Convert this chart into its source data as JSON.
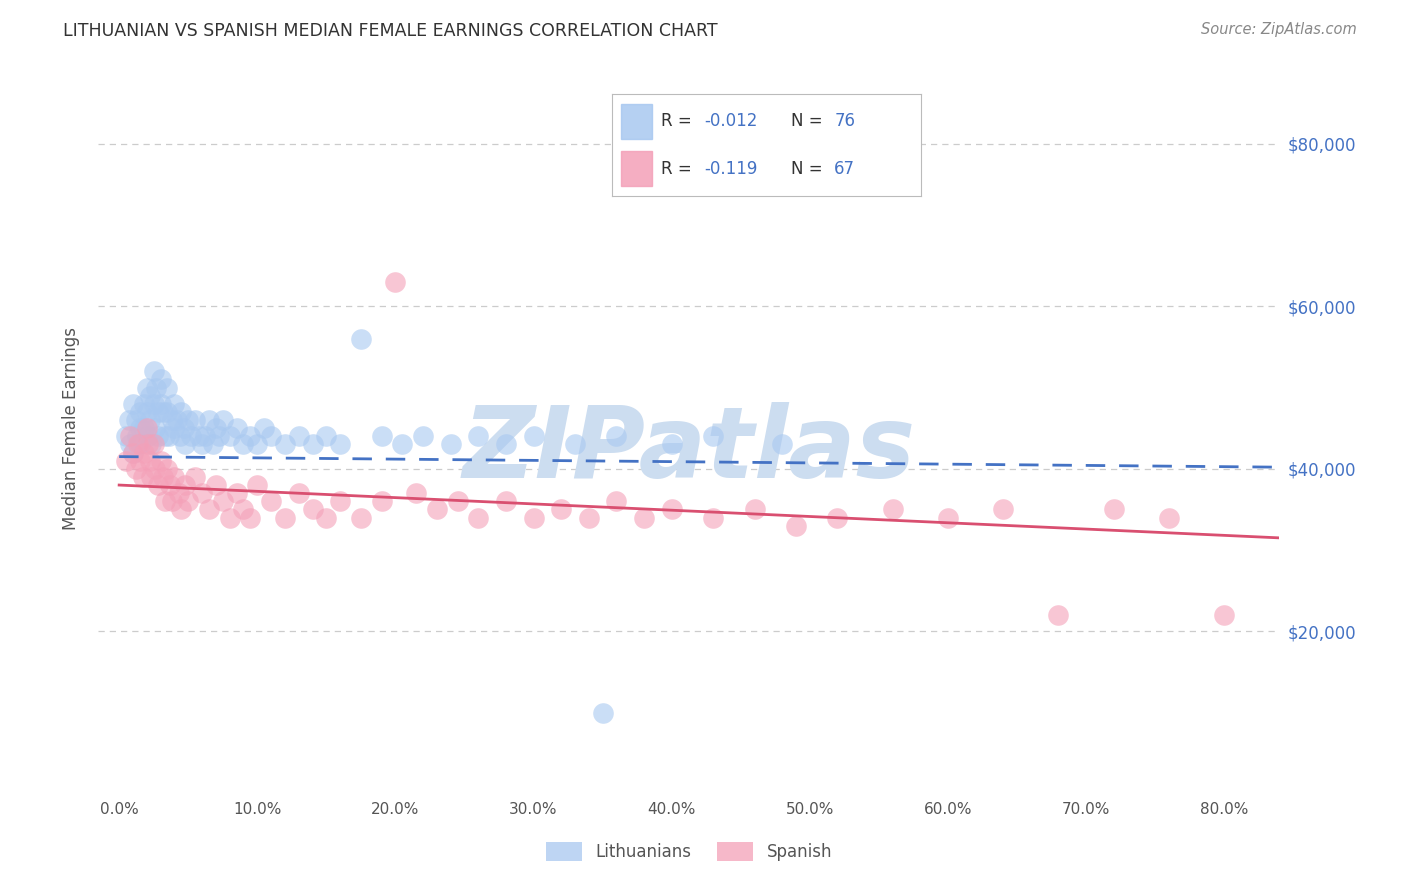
{
  "title": "LITHUANIAN VS SPANISH MEDIAN FEMALE EARNINGS CORRELATION CHART",
  "source": "Source: ZipAtlas.com",
  "ylabel": "Median Female Earnings",
  "xlabel_ticks": [
    "0.0%",
    "10.0%",
    "20.0%",
    "30.0%",
    "40.0%",
    "50.0%",
    "60.0%",
    "70.0%",
    "80.0%"
  ],
  "xlabel_vals": [
    0.0,
    0.1,
    0.2,
    0.3,
    0.4,
    0.5,
    0.6,
    0.7,
    0.8
  ],
  "ytick_labels": [
    "$20,000",
    "$40,000",
    "$60,000",
    "$80,000"
  ],
  "ytick_vals": [
    20000,
    40000,
    60000,
    80000
  ],
  "ylim": [
    0,
    90000
  ],
  "xlim": [
    -0.015,
    0.84
  ],
  "color_lithuanian": "#a8c8f0",
  "color_spanish": "#f4a0b8",
  "color_line_lithuanian": "#4472c4",
  "color_line_spanish": "#d94f70",
  "watermark_color": "#ccddf0",
  "title_color": "#333333",
  "source_color": "#888888",
  "ylabel_color": "#555555",
  "yticklabel_color": "#4472c4",
  "background_color": "#ffffff",
  "grid_color": "#cccccc",
  "lith_x": [
    0.005,
    0.007,
    0.008,
    0.01,
    0.01,
    0.012,
    0.013,
    0.015,
    0.015,
    0.015,
    0.018,
    0.018,
    0.02,
    0.02,
    0.021,
    0.022,
    0.022,
    0.023,
    0.025,
    0.025,
    0.026,
    0.027,
    0.028,
    0.028,
    0.03,
    0.03,
    0.032,
    0.033,
    0.035,
    0.035,
    0.036,
    0.038,
    0.04,
    0.04,
    0.042,
    0.044,
    0.045,
    0.047,
    0.048,
    0.05,
    0.052,
    0.055,
    0.058,
    0.06,
    0.062,
    0.065,
    0.068,
    0.07,
    0.072,
    0.075,
    0.08,
    0.085,
    0.09,
    0.095,
    0.1,
    0.105,
    0.11,
    0.12,
    0.13,
    0.14,
    0.15,
    0.16,
    0.175,
    0.19,
    0.205,
    0.22,
    0.24,
    0.26,
    0.28,
    0.3,
    0.33,
    0.36,
    0.4,
    0.43,
    0.48,
    0.35
  ],
  "lith_y": [
    44000,
    46000,
    43000,
    48000,
    42000,
    46000,
    44000,
    47000,
    45000,
    43000,
    48000,
    45000,
    50000,
    47000,
    44000,
    49000,
    46000,
    43000,
    52000,
    48000,
    45000,
    50000,
    47000,
    44000,
    51000,
    48000,
    47000,
    44000,
    50000,
    47000,
    44000,
    46000,
    48000,
    45000,
    46000,
    44000,
    47000,
    45000,
    43000,
    46000,
    44000,
    46000,
    44000,
    43000,
    44000,
    46000,
    43000,
    45000,
    44000,
    46000,
    44000,
    45000,
    43000,
    44000,
    43000,
    45000,
    44000,
    43000,
    44000,
    43000,
    44000,
    43000,
    56000,
    44000,
    43000,
    44000,
    43000,
    44000,
    43000,
    44000,
    43000,
    44000,
    43000,
    44000,
    43000,
    10000
  ],
  "span_x": [
    0.005,
    0.008,
    0.01,
    0.012,
    0.014,
    0.015,
    0.017,
    0.018,
    0.02,
    0.021,
    0.022,
    0.023,
    0.025,
    0.026,
    0.028,
    0.03,
    0.032,
    0.033,
    0.035,
    0.037,
    0.038,
    0.04,
    0.043,
    0.045,
    0.048,
    0.05,
    0.055,
    0.06,
    0.065,
    0.07,
    0.075,
    0.08,
    0.085,
    0.09,
    0.095,
    0.1,
    0.11,
    0.12,
    0.13,
    0.14,
    0.15,
    0.16,
    0.175,
    0.19,
    0.2,
    0.215,
    0.23,
    0.245,
    0.26,
    0.28,
    0.3,
    0.32,
    0.34,
    0.36,
    0.38,
    0.4,
    0.43,
    0.46,
    0.49,
    0.52,
    0.56,
    0.6,
    0.64,
    0.68,
    0.72,
    0.76,
    0.8
  ],
  "span_y": [
    41000,
    44000,
    42000,
    40000,
    43000,
    41000,
    39000,
    42000,
    45000,
    43000,
    41000,
    39000,
    43000,
    40000,
    38000,
    41000,
    39000,
    36000,
    40000,
    38000,
    36000,
    39000,
    37000,
    35000,
    38000,
    36000,
    39000,
    37000,
    35000,
    38000,
    36000,
    34000,
    37000,
    35000,
    34000,
    38000,
    36000,
    34000,
    37000,
    35000,
    34000,
    36000,
    34000,
    36000,
    63000,
    37000,
    35000,
    36000,
    34000,
    36000,
    34000,
    35000,
    34000,
    36000,
    34000,
    35000,
    34000,
    35000,
    33000,
    34000,
    35000,
    34000,
    35000,
    22000,
    35000,
    34000,
    22000
  ]
}
